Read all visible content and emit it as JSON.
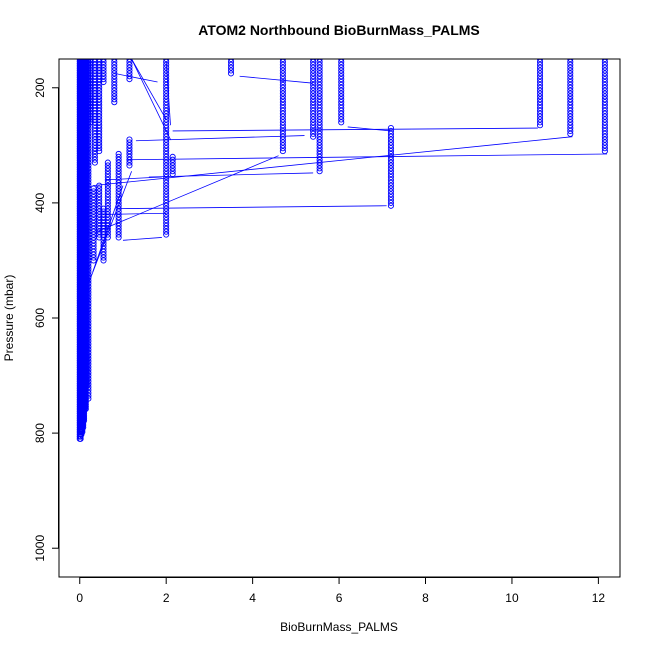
{
  "chart_data": {
    "type": "scatter",
    "title": "ATOM2 Northbound BioBurnMass_PALMS",
    "xlabel": "BioBurnMass_PALMS",
    "ylabel": "Pressure (mbar)",
    "xlim": [
      -0.48,
      12.5
    ],
    "ylim": [
      1050,
      150
    ],
    "y_reversed": true,
    "x_ticks": [
      0,
      2,
      4,
      6,
      8,
      10,
      12
    ],
    "x_tick_labels": [
      "0",
      "2",
      "4",
      "6",
      "8",
      "10",
      "12"
    ],
    "y_ticks": [
      200,
      400,
      600,
      800,
      1000
    ],
    "y_tick_labels": [
      "200",
      "400",
      "600",
      "800",
      "1000"
    ],
    "marker": "open-circle",
    "connect_points": true,
    "grid": false,
    "legend": "none",
    "series_color": "#0000ff",
    "columns": [
      {
        "x": 0.8,
        "p_start": 150,
        "p_end": 225
      },
      {
        "x": 1.15,
        "p_start": 150,
        "p_end": 185
      },
      {
        "x": 2.0,
        "p_start": 150,
        "p_end": 455
      },
      {
        "x": 2.15,
        "p_start": 320,
        "p_end": 350
      },
      {
        "x": 3.5,
        "p_start": 150,
        "p_end": 175
      },
      {
        "x": 4.7,
        "p_start": 150,
        "p_end": 310
      },
      {
        "x": 5.4,
        "p_start": 150,
        "p_end": 285
      },
      {
        "x": 5.55,
        "p_start": 150,
        "p_end": 345
      },
      {
        "x": 6.05,
        "p_start": 150,
        "p_end": 262
      },
      {
        "x": 7.2,
        "p_start": 270,
        "p_end": 405
      },
      {
        "x": 10.65,
        "p_start": 150,
        "p_end": 265
      },
      {
        "x": 11.35,
        "p_start": 150,
        "p_end": 280
      },
      {
        "x": 12.15,
        "p_start": 150,
        "p_end": 312
      },
      {
        "x": 1.15,
        "p_start": 290,
        "p_end": 335
      },
      {
        "x": 0.9,
        "p_start": 315,
        "p_end": 460
      },
      {
        "x": 0.65,
        "p_start": 330,
        "p_end": 460
      },
      {
        "x": 0.55,
        "p_start": 410,
        "p_end": 500
      },
      {
        "x": 0.45,
        "p_start": 370,
        "p_end": 460
      },
      {
        "x": 0.32,
        "p_start": 375,
        "p_end": 500
      },
      {
        "x": 0.55,
        "p_start": 150,
        "p_end": 190
      },
      {
        "x": 0.45,
        "p_start": 150,
        "p_end": 310
      },
      {
        "x": 0.35,
        "p_start": 150,
        "p_end": 330
      },
      {
        "x": 0.25,
        "p_start": 150,
        "p_end": 260
      },
      {
        "x": 0.2,
        "p_start": 150,
        "p_end": 740
      }
    ],
    "core_points": [
      {
        "x": 0.0,
        "p_start": 150,
        "p_end": 810
      },
      {
        "x": 0.02,
        "p_start": 150,
        "p_end": 810
      },
      {
        "x": 0.04,
        "p_start": 150,
        "p_end": 805
      },
      {
        "x": 0.06,
        "p_start": 150,
        "p_end": 800
      },
      {
        "x": 0.08,
        "p_start": 150,
        "p_end": 790
      },
      {
        "x": 0.1,
        "p_start": 150,
        "p_end": 780
      },
      {
        "x": 0.12,
        "p_start": 150,
        "p_end": 760
      },
      {
        "x": 0.14,
        "p_start": 150,
        "p_end": 760
      },
      {
        "x": 0.16,
        "p_start": 150,
        "p_end": 720
      }
    ],
    "connector_lines": [
      {
        "x1": 1.2,
        "p1": 150,
        "x2": 2.0,
        "p2": 255
      },
      {
        "x1": 2.0,
        "p1": 155,
        "x2": 2.1,
        "p2": 265
      },
      {
        "x1": 0.8,
        "p1": 175,
        "x2": 1.8,
        "p2": 190
      },
      {
        "x1": 3.7,
        "p1": 180,
        "x2": 5.4,
        "p2": 192
      },
      {
        "x1": 2.15,
        "p1": 275,
        "x2": 10.6,
        "p2": 270
      },
      {
        "x1": 1.3,
        "p1": 292,
        "x2": 5.2,
        "p2": 283
      },
      {
        "x1": 6.2,
        "p1": 268,
        "x2": 7.2,
        "p2": 275
      },
      {
        "x1": 1.1,
        "p1": 325,
        "x2": 12.2,
        "p2": 315
      },
      {
        "x1": 1.6,
        "p1": 355,
        "x2": 5.4,
        "p2": 348
      },
      {
        "x1": 0.3,
        "p1": 370,
        "x2": 11.4,
        "p2": 285
      },
      {
        "x1": 0.9,
        "p1": 410,
        "x2": 7.1,
        "p2": 405
      },
      {
        "x1": 1.0,
        "p1": 465,
        "x2": 1.9,
        "p2": 460
      },
      {
        "x1": 0.4,
        "p1": 450,
        "x2": 4.6,
        "p2": 318
      },
      {
        "x1": 0.1,
        "p1": 560,
        "x2": 1.2,
        "p2": 345
      },
      {
        "x1": 0.6,
        "p1": 420,
        "x2": 2.0,
        "p2": 418
      },
      {
        "x1": 0.3,
        "p1": 520,
        "x2": 1.0,
        "p2": 370
      },
      {
        "x1": 0.6,
        "p1": 360,
        "x2": 1.9,
        "p2": 355
      },
      {
        "x1": 1.2,
        "p1": 150,
        "x2": 2.1,
        "p2": 290
      }
    ]
  }
}
